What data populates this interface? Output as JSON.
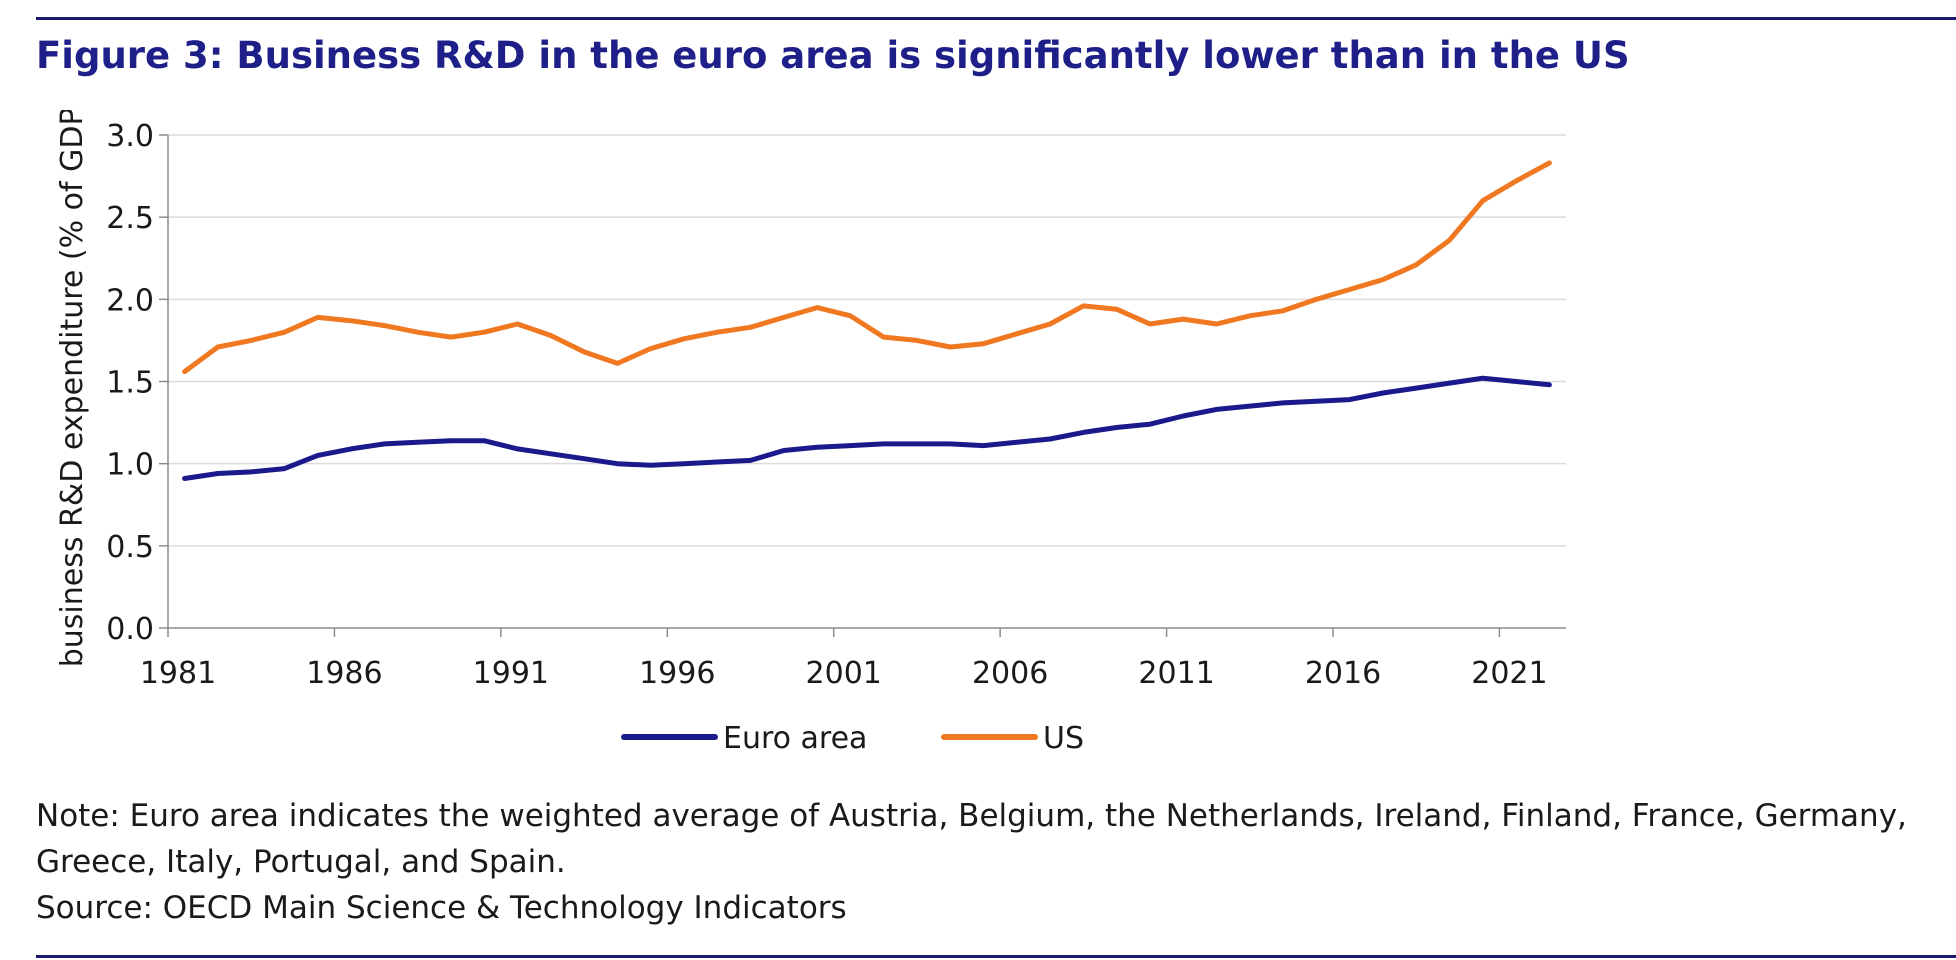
{
  "title": "Figure 3: Business R&D in the euro area is significantly lower than in the US",
  "note": "Note: Euro area indicates the weighted average of Austria, Belgium, the Netherlands, Ireland, Finland, France, Germany, Greece, Italy, Portugal, and Spain.",
  "source": "Source: OECD Main Science & Technology Indicators",
  "chart_data": {
    "type": "line",
    "title": "",
    "xlabel": "",
    "ylabel": "business R&D expenditure (% of GDP)",
    "x": [
      1981,
      1982,
      1983,
      1984,
      1985,
      1986,
      1987,
      1988,
      1989,
      1990,
      1991,
      1992,
      1993,
      1994,
      1995,
      1996,
      1997,
      1998,
      1999,
      2000,
      2001,
      2002,
      2003,
      2004,
      2005,
      2006,
      2007,
      2008,
      2009,
      2010,
      2011,
      2012,
      2013,
      2014,
      2015,
      2016,
      2017,
      2018,
      2019,
      2020,
      2021,
      2022
    ],
    "xticks": [
      "1981",
      "1986",
      "1991",
      "1996",
      "2001",
      "2006",
      "2011",
      "2016",
      "2021"
    ],
    "ylim": [
      0,
      3.0
    ],
    "yticks": [
      "0.0",
      "0.5",
      "1.0",
      "1.5",
      "2.0",
      "2.5",
      "3.0"
    ],
    "grid": true,
    "legend_position": "bottom",
    "series": [
      {
        "name": "Euro area",
        "color": "#1a1a8c",
        "values": [
          0.91,
          0.94,
          0.95,
          0.97,
          1.05,
          1.09,
          1.12,
          1.13,
          1.14,
          1.14,
          1.09,
          1.06,
          1.03,
          1.0,
          0.99,
          1.0,
          1.01,
          1.02,
          1.08,
          1.1,
          1.11,
          1.12,
          1.12,
          1.12,
          1.11,
          1.13,
          1.15,
          1.19,
          1.22,
          1.24,
          1.29,
          1.33,
          1.35,
          1.37,
          1.38,
          1.39,
          1.43,
          1.46,
          1.49,
          1.52,
          1.5,
          1.48
        ]
      },
      {
        "name": "US",
        "color": "#f07820",
        "values": [
          1.56,
          1.71,
          1.75,
          1.8,
          1.89,
          1.87,
          1.84,
          1.8,
          1.77,
          1.8,
          1.85,
          1.78,
          1.68,
          1.61,
          1.7,
          1.76,
          1.8,
          1.83,
          1.89,
          1.95,
          1.9,
          1.77,
          1.75,
          1.71,
          1.73,
          1.79,
          1.85,
          1.96,
          1.94,
          1.85,
          1.88,
          1.85,
          1.9,
          1.93,
          2.0,
          2.06,
          2.12,
          2.21,
          2.36,
          2.6,
          2.72,
          2.83
        ]
      }
    ]
  }
}
